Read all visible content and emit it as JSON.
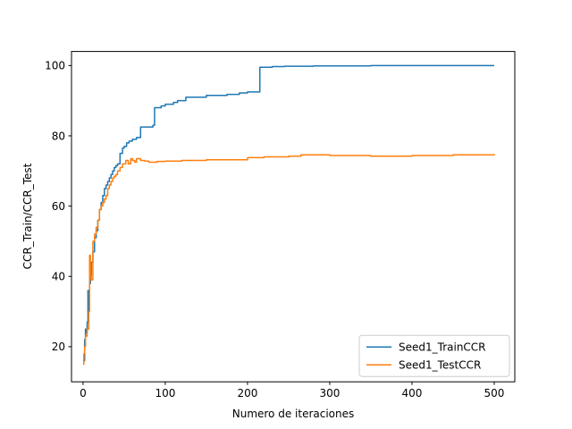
{
  "chart_data": {
    "type": "line",
    "title": "",
    "xlabel": "Numero de iteraciones",
    "ylabel": "CCR_Train/CCR_Test",
    "xlim": [
      -14,
      525
    ],
    "ylim": [
      10,
      104
    ],
    "xticks": [
      0,
      100,
      200,
      300,
      400,
      500
    ],
    "yticks": [
      20,
      40,
      60,
      80,
      100
    ],
    "grid": false,
    "legend_position": "lower-right",
    "series": [
      {
        "name": "Seed1_TrainCCR",
        "color": "#1f77b4",
        "step": true,
        "x": [
          0,
          2,
          3,
          4,
          5,
          6,
          7,
          8,
          9,
          10,
          12,
          14,
          16,
          18,
          20,
          22,
          24,
          26,
          28,
          30,
          32,
          34,
          36,
          38,
          40,
          42,
          45,
          48,
          50,
          53,
          56,
          60,
          65,
          70,
          85,
          87,
          95,
          100,
          110,
          115,
          125,
          150,
          175,
          190,
          200,
          213,
          215,
          230,
          245,
          280,
          300,
          350,
          400,
          450,
          500
        ],
        "y": [
          16,
          22,
          25,
          24,
          27,
          36,
          30,
          38,
          40,
          44,
          47,
          51,
          53,
          56,
          59,
          61,
          63,
          65,
          66,
          67,
          68,
          69,
          70,
          71,
          71.5,
          72,
          75,
          76.5,
          77,
          78,
          78.5,
          79,
          79.5,
          82.5,
          83,
          88,
          88.5,
          89,
          89.5,
          90,
          91,
          91.5,
          91.8,
          92.2,
          92.5,
          92.5,
          99.5,
          99.7,
          99.8,
          99.9,
          99.9,
          100,
          100,
          100,
          100
        ]
      },
      {
        "name": "Seed1_TestCCR",
        "color": "#ff7f0e",
        "step": true,
        "x": [
          0,
          1,
          2,
          3,
          5,
          7,
          8,
          9,
          10,
          12,
          14,
          16,
          18,
          20,
          22,
          24,
          26,
          28,
          30,
          32,
          34,
          36,
          38,
          40,
          42,
          45,
          48,
          52,
          55,
          58,
          60,
          63,
          65,
          70,
          75,
          80,
          90,
          100,
          120,
          150,
          200,
          220,
          250,
          265,
          300,
          350,
          400,
          450,
          500
        ],
        "y": [
          15,
          18,
          20,
          23,
          25,
          30,
          46,
          40,
          39,
          50,
          52,
          54,
          56,
          59,
          60,
          61,
          62,
          63,
          65,
          66,
          67,
          68,
          68.5,
          69,
          70,
          71,
          72,
          73,
          72,
          73.5,
          73,
          72.5,
          73.5,
          73,
          72.8,
          72.5,
          72.7,
          72.8,
          73,
          73.2,
          73.8,
          74,
          74.2,
          74.6,
          74.4,
          74.2,
          74.4,
          74.6,
          74.8
        ]
      }
    ]
  }
}
